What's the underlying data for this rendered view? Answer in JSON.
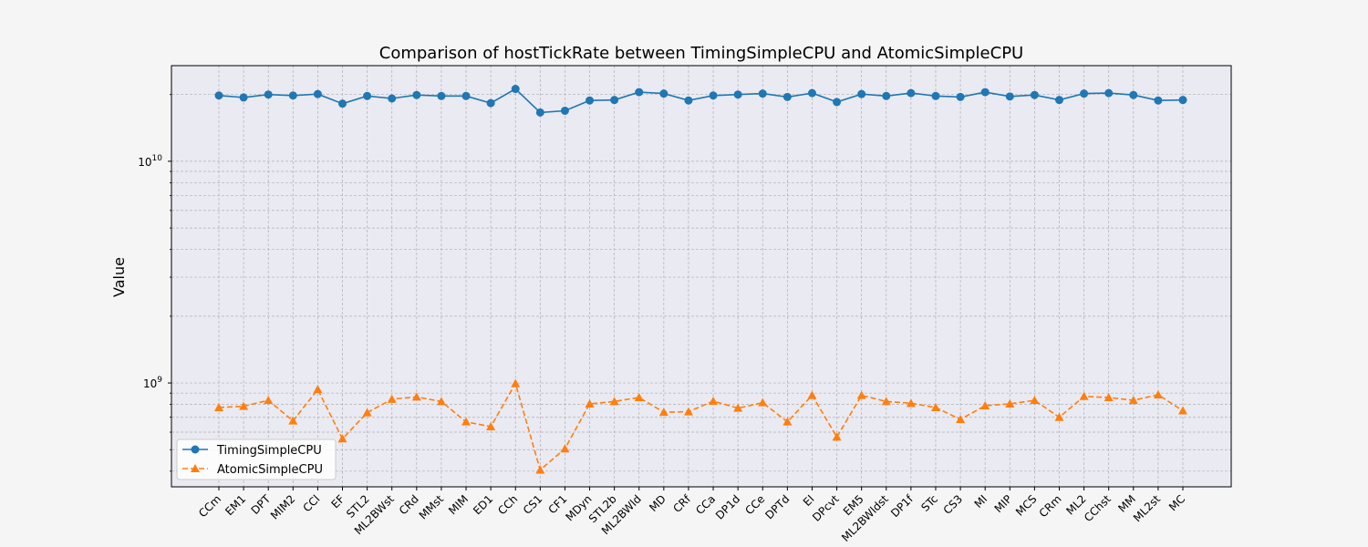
{
  "chart_data": {
    "type": "line",
    "title": "Comparison of hostTickRate between TimingSimpleCPU and AtomicSimpleCPU",
    "xlabel": "",
    "ylabel": "Value",
    "yscale": "log",
    "ylim": [
      340000000,
      27000000000
    ],
    "y_tick_labels": [
      {
        "value": 1000000000,
        "mantissa": "10",
        "exp": "9"
      },
      {
        "value": 10000000000,
        "mantissa": "10",
        "exp": "10"
      }
    ],
    "grid": true,
    "legend_position": "bottom-left",
    "categories": [
      "CCm",
      "EM1",
      "DPT",
      "MIM2",
      "CCl",
      "EF",
      "STL2",
      "ML2BWst",
      "CRd",
      "MMst",
      "MIM",
      "ED1",
      "CCh",
      "CS1",
      "CF1",
      "MDyn",
      "STL2b",
      "ML2BWld",
      "MD",
      "CRf",
      "CCa",
      "DP1d",
      "CCe",
      "DPTd",
      "EI",
      "DPcvt",
      "EM5",
      "ML2BWldst",
      "DP1f",
      "STc",
      "CS3",
      "MI",
      "MIP",
      "MCS",
      "CRm",
      "ML2",
      "CChst",
      "MM",
      "ML2st",
      "MC"
    ],
    "series": [
      {
        "name": "TimingSimpleCPU",
        "color": "#1f77b4",
        "marker": "circle",
        "line_style": "solid",
        "values": [
          19800000000,
          19400000000,
          20000000000,
          19800000000,
          20100000000,
          18200000000,
          19700000000,
          19200000000,
          19900000000,
          19700000000,
          19700000000,
          18300000000,
          21200000000,
          16600000000,
          16900000000,
          18800000000,
          18900000000,
          20500000000,
          20200000000,
          18800000000,
          19800000000,
          20000000000,
          20200000000,
          19500000000,
          20300000000,
          18500000000,
          20100000000,
          19700000000,
          20300000000,
          19700000000,
          19500000000,
          20500000000,
          19600000000,
          19900000000,
          18900000000,
          20200000000,
          20300000000,
          19900000000,
          18800000000,
          18900000000
        ]
      },
      {
        "name": "AtomicSimpleCPU",
        "color": "#ff7f0e",
        "marker": "triangle",
        "line_style": "dashed",
        "values": [
          775000000,
          785000000,
          835000000,
          675000000,
          935000000,
          560000000,
          735000000,
          845000000,
          865000000,
          825000000,
          668000000,
          635000000,
          995000000,
          405000000,
          505000000,
          805000000,
          825000000,
          860000000,
          738000000,
          742000000,
          828000000,
          770000000,
          815000000,
          668000000,
          880000000,
          570000000,
          880000000,
          825000000,
          810000000,
          775000000,
          685000000,
          790000000,
          805000000,
          835000000,
          700000000,
          870000000,
          860000000,
          835000000,
          885000000,
          750000000
        ]
      }
    ]
  }
}
